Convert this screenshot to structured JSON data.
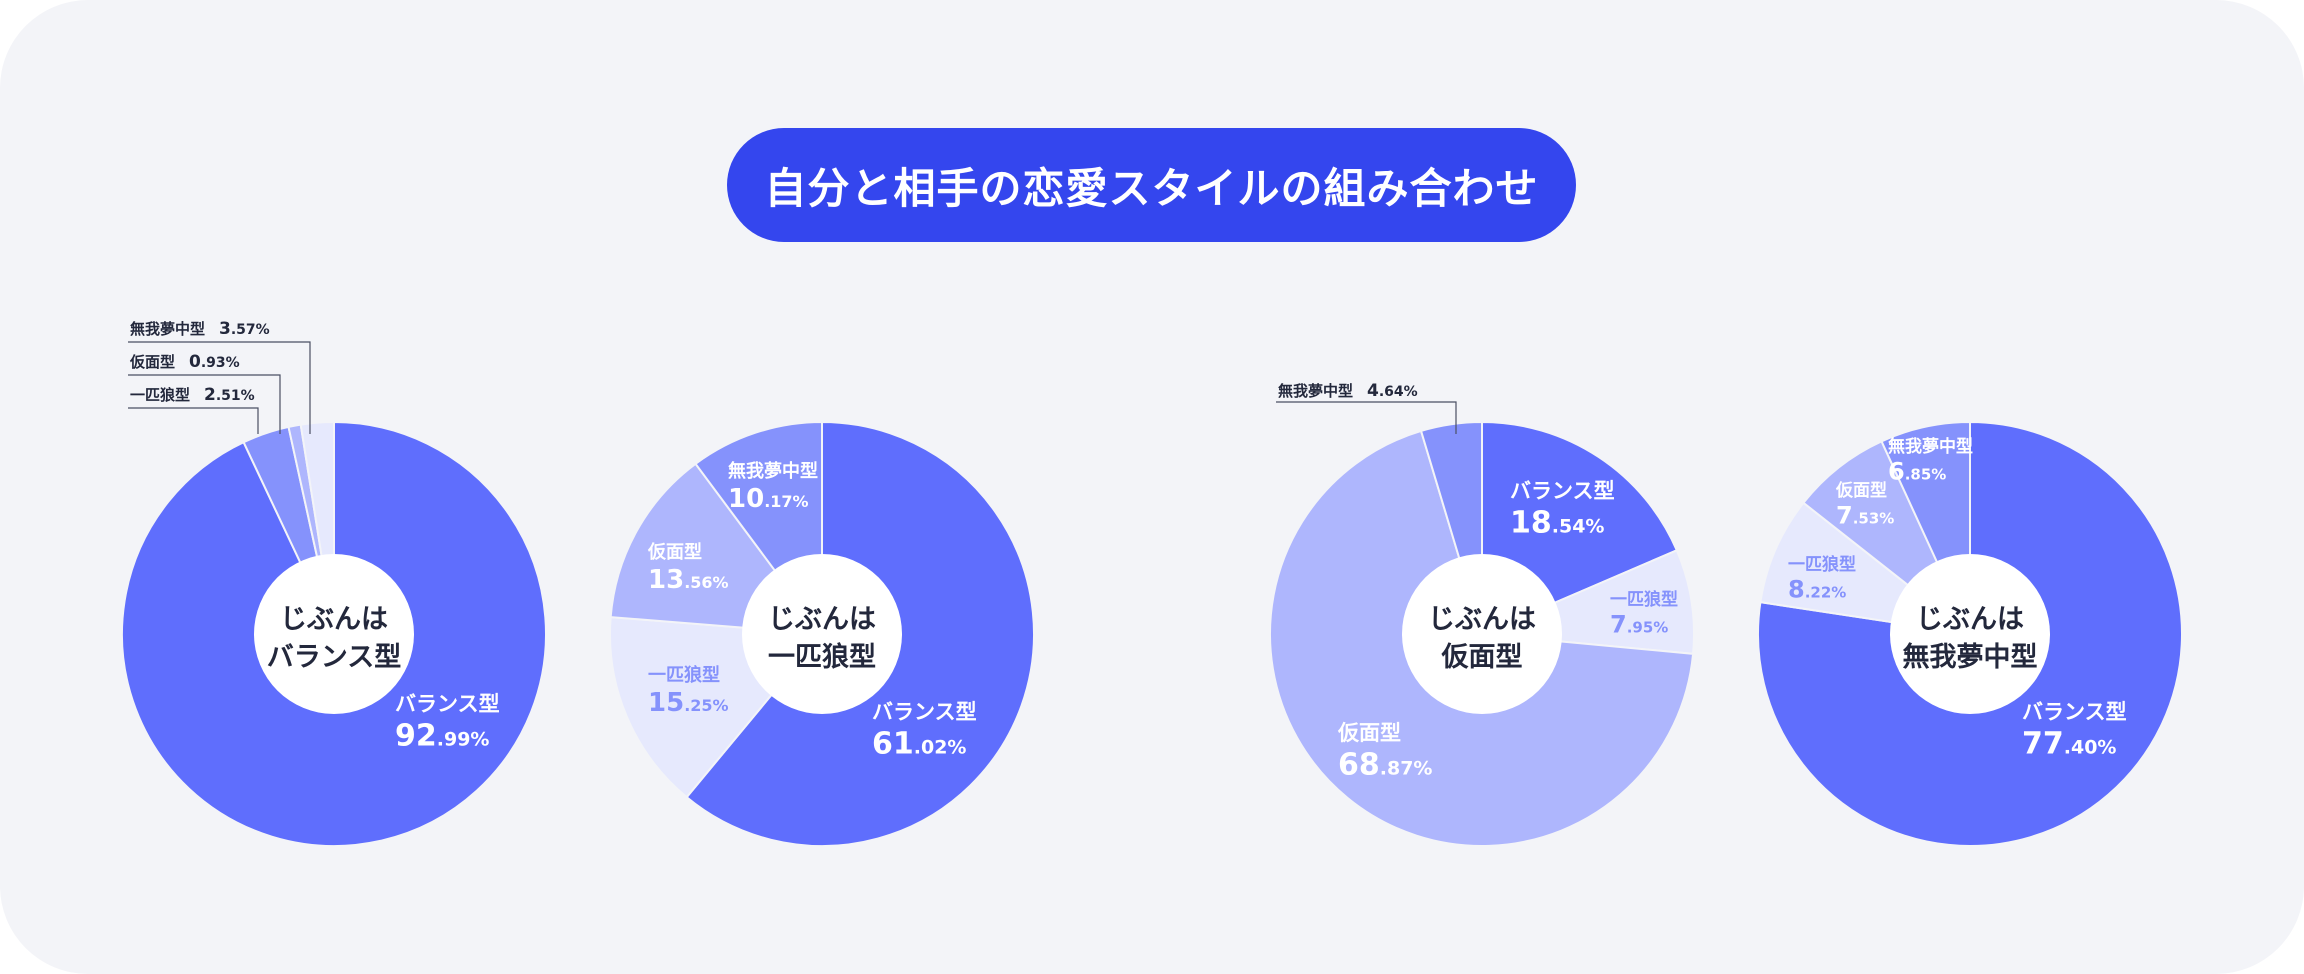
{
  "title": "自分と相手の恋愛スタイルの組み合わせ",
  "colors": {
    "background": "#f3f4f8",
    "title_pill": "#3446ee",
    "balance": "#5f6efd",
    "muga": "#8592fc",
    "kamen": "#aeb6fd",
    "ippiki": "#e6e9fd",
    "center_text": "#23283c"
  },
  "chart_data": [
    {
      "type": "pie",
      "center_label": [
        "じぶんは",
        "バランス型"
      ],
      "slices": [
        {
          "label": "バランス型",
          "value": 92.99,
          "int": "92",
          "dec": ".99%",
          "color": "#5f6efd"
        },
        {
          "label": "一匹狼型",
          "value": 2.51,
          "int": "2",
          "dec": ".51%",
          "color": "#e6e9fd"
        },
        {
          "label": "仮面型",
          "value": 0.93,
          "int": "0",
          "dec": ".93%",
          "color": "#aeb6fd"
        },
        {
          "label": "無我夢中型",
          "value": 3.57,
          "int": "3",
          "dec": ".57%",
          "color": "#8592fc"
        }
      ]
    },
    {
      "type": "pie",
      "center_label": [
        "じぶんは",
        "一匹狼型"
      ],
      "slices": [
        {
          "label": "バランス型",
          "value": 61.02,
          "int": "61",
          "dec": ".02%",
          "color": "#5f6efd"
        },
        {
          "label": "一匹狼型",
          "value": 15.25,
          "int": "15",
          "dec": ".25%",
          "color": "#e6e9fd"
        },
        {
          "label": "仮面型",
          "value": 13.56,
          "int": "13",
          "dec": ".56%",
          "color": "#aeb6fd"
        },
        {
          "label": "無我夢中型",
          "value": 10.17,
          "int": "10",
          "dec": ".17%",
          "color": "#8592fc"
        }
      ]
    },
    {
      "type": "pie",
      "center_label": [
        "じぶんは",
        "仮面型"
      ],
      "slices": [
        {
          "label": "バランス型",
          "value": 18.54,
          "int": "18",
          "dec": ".54%",
          "color": "#5f6efd"
        },
        {
          "label": "一匹狼型",
          "value": 7.95,
          "int": "7",
          "dec": ".95%",
          "color": "#e6e9fd"
        },
        {
          "label": "仮面型",
          "value": 68.87,
          "int": "68",
          "dec": ".87%",
          "color": "#aeb6fd"
        },
        {
          "label": "無我夢中型",
          "value": 4.64,
          "int": "4",
          "dec": ".64%",
          "color": "#8592fc"
        }
      ]
    },
    {
      "type": "pie",
      "center_label": [
        "じぶんは",
        "無我夢中型"
      ],
      "slices": [
        {
          "label": "バランス型",
          "value": 77.4,
          "int": "77",
          "dec": ".40%",
          "color": "#5f6efd"
        },
        {
          "label": "一匹狼型",
          "value": 8.22,
          "int": "8",
          "dec": ".22%",
          "color": "#e6e9fd"
        },
        {
          "label": "仮面型",
          "value": 7.53,
          "int": "7",
          "dec": ".53%",
          "color": "#aeb6fd"
        },
        {
          "label": "無我夢中型",
          "value": 6.85,
          "int": "6",
          "dec": ".85%",
          "color": "#8592fc"
        }
      ]
    }
  ]
}
